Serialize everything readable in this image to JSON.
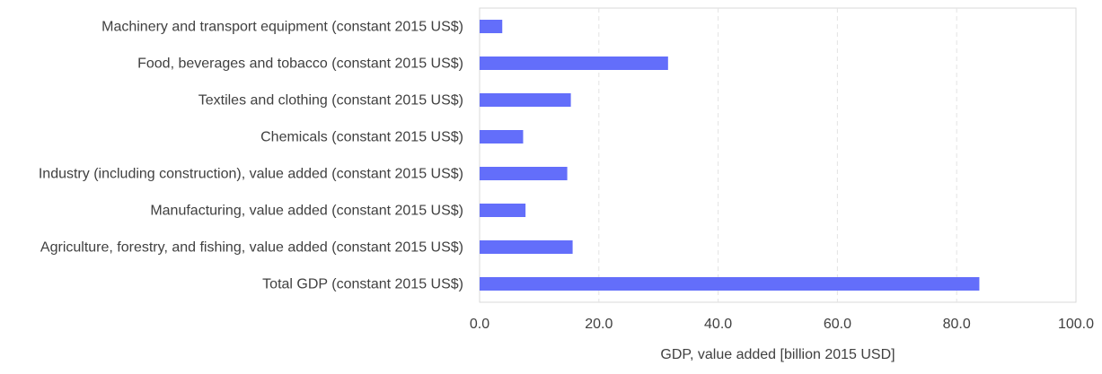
{
  "chart_data": {
    "type": "bar",
    "orientation": "horizontal",
    "categories": [
      "Machinery and transport equipment (constant 2015 US$)",
      "Food, beverages and tobacco (constant 2015 US$)",
      "Textiles and clothing (constant 2015 US$)",
      "Chemicals (constant 2015 US$)",
      "Industry (including construction), value added (constant 2015 US$)",
      "Manufacturing, value added (constant 2015 US$)",
      "Agriculture, forestry, and fishing, value added (constant 2015 US$)",
      "Total GDP (constant 2015 US$)"
    ],
    "values": [
      3.8,
      31.6,
      15.3,
      7.3,
      14.7,
      7.7,
      15.6,
      83.8
    ],
    "xlabel": "GDP, value added [billion 2015 USD]",
    "ylabel": "",
    "xlim": [
      0,
      100
    ],
    "xticks": [
      0,
      20,
      40,
      60,
      80,
      100
    ],
    "xtick_labels": [
      "0.0",
      "20.0",
      "40.0",
      "60.0",
      "80.0",
      "100.0"
    ],
    "grid": "vertical dashed",
    "legend": "none",
    "bar_color": "#636efa"
  }
}
